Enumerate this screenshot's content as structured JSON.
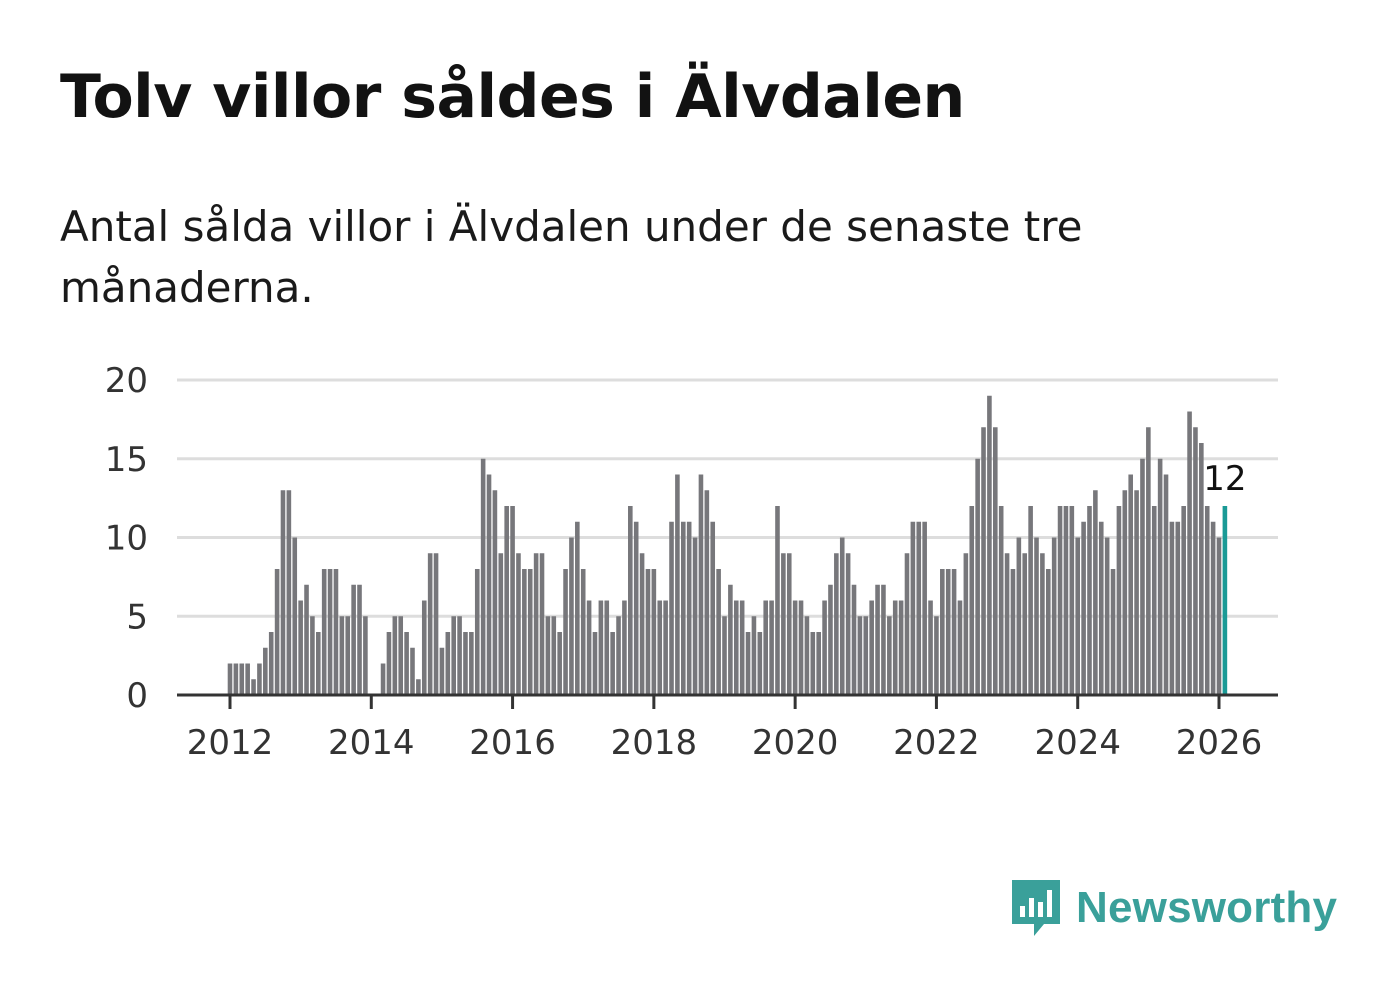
{
  "title": "Tolv villor såldes i Älvdalen",
  "subtitle": "Antal sålda villor i Älvdalen under de senaste tre månaderna.",
  "logo_text": "Newsworthy",
  "colors": {
    "bar": "#77777b",
    "highlight": "#1a9a96",
    "grid": "#dddddd",
    "axis": "#333333",
    "brand": "#3aa09a"
  },
  "chart_data": {
    "type": "bar",
    "title": "Tolv villor såldes i Älvdalen",
    "xlabel": "",
    "ylabel": "",
    "ylim": [
      0,
      20
    ],
    "yticks": [
      "0",
      "5",
      "10",
      "15",
      "20"
    ],
    "xticks": [
      "2012",
      "2014",
      "2016",
      "2018",
      "2020",
      "2022",
      "2024",
      "2026"
    ],
    "start": "2011-01",
    "highlight_label": "12",
    "values": [
      0,
      0,
      0,
      0,
      0,
      0,
      0,
      0,
      0,
      0,
      0,
      0,
      2,
      2,
      2,
      2,
      1,
      2,
      3,
      4,
      8,
      13,
      13,
      10,
      6,
      7,
      5,
      4,
      8,
      8,
      8,
      5,
      5,
      7,
      7,
      5,
      0,
      0,
      2,
      4,
      5,
      5,
      4,
      3,
      1,
      6,
      9,
      9,
      3,
      4,
      5,
      5,
      4,
      4,
      8,
      15,
      14,
      13,
      9,
      12,
      12,
      9,
      8,
      8,
      9,
      9,
      5,
      5,
      4,
      8,
      10,
      11,
      8,
      6,
      4,
      6,
      6,
      4,
      5,
      6,
      12,
      11,
      9,
      8,
      8,
      6,
      6,
      11,
      14,
      11,
      11,
      10,
      14,
      13,
      11,
      8,
      5,
      7,
      6,
      6,
      4,
      5,
      4,
      6,
      6,
      12,
      9,
      9,
      6,
      6,
      5,
      4,
      4,
      6,
      7,
      9,
      10,
      9,
      7,
      5,
      5,
      6,
      7,
      7,
      5,
      6,
      6,
      9,
      11,
      11,
      11,
      6,
      5,
      8,
      8,
      8,
      6,
      9,
      12,
      15,
      17,
      19,
      17,
      12,
      9,
      8,
      10,
      9,
      12,
      10,
      9,
      8,
      10,
      12,
      12,
      12,
      10,
      11,
      12,
      13,
      11,
      10,
      8,
      12,
      13,
      14,
      13,
      15,
      17,
      12,
      15,
      14,
      11,
      11,
      12,
      18,
      17,
      16,
      12,
      11,
      10,
      12
    ]
  }
}
